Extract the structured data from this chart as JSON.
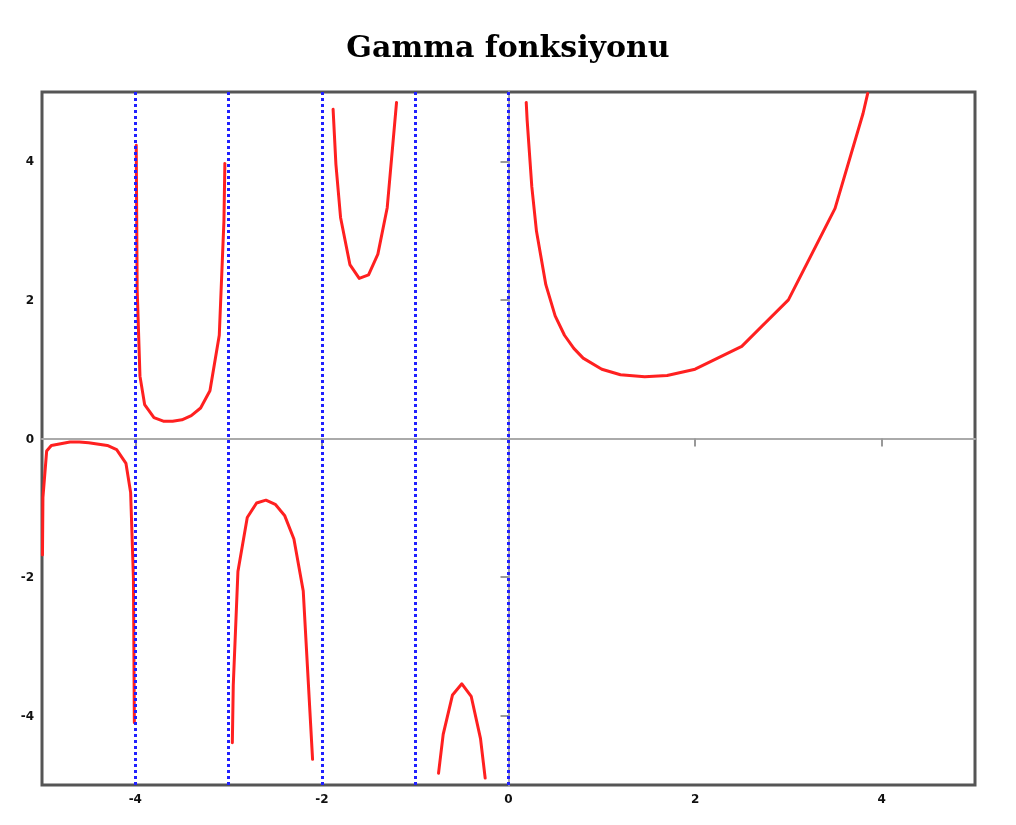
{
  "chart_data": {
    "type": "line",
    "title": "Gamma fonksiyonu",
    "x": [
      -4.995,
      -4.99,
      -4.95,
      -4.9,
      -4.7,
      -4.6,
      -4.5,
      -4.3,
      -4.2,
      -4.1,
      -4.05,
      -4.02,
      -4.01,
      null,
      -3.99,
      -3.98,
      -3.95,
      -3.9,
      -3.8,
      -3.7,
      -3.6,
      -3.5,
      -3.4,
      -3.3,
      -3.2,
      -3.1,
      -3.05,
      -3.04,
      null,
      -2.96,
      -2.95,
      -2.9,
      -2.8,
      -2.7,
      -2.6,
      -2.5,
      -2.4,
      -2.3,
      -2.2,
      -2.1,
      null,
      -1.88,
      -1.85,
      -1.8,
      -1.7,
      -1.6,
      -1.5,
      -1.4,
      -1.3,
      -1.2,
      null,
      -0.75,
      -0.7,
      -0.6,
      -0.5,
      -0.4,
      -0.3,
      -0.25,
      null,
      0.19,
      0.2,
      0.25,
      0.3,
      0.4,
      0.5,
      0.6,
      0.7,
      0.8,
      1,
      1.2,
      1.46,
      1.7,
      2,
      2.5,
      3,
      3.5,
      3.8,
      3.85
    ],
    "series": [
      {
        "color": "#ff2020",
        "values": [
          -1.68,
          -0.85,
          -0.18,
          -0.1,
          -0.05,
          -0.05,
          -0.06,
          -0.1,
          -0.16,
          -0.36,
          -0.78,
          -2.02,
          -4.1,
          null,
          4.23,
          2.15,
          0.9,
          0.49,
          0.3,
          0.25,
          0.25,
          0.27,
          0.33,
          0.44,
          0.69,
          1.49,
          3.14,
          3.97,
          null,
          -4.39,
          -3.56,
          -1.92,
          -1.14,
          -0.93,
          -0.89,
          -0.95,
          -1.11,
          -1.45,
          -2.2,
          -4.63,
          null,
          4.75,
          3.96,
          3.19,
          2.51,
          2.31,
          2.36,
          2.66,
          3.33,
          4.85,
          null,
          -4.83,
          -4.27,
          -3.7,
          -3.54,
          -3.72,
          -4.33,
          -4.9,
          null,
          4.85,
          4.59,
          3.63,
          2.99,
          2.22,
          1.77,
          1.49,
          1.3,
          1.16,
          1,
          0.92,
          0.89,
          0.91,
          1,
          1.33,
          2,
          3.32,
          4.69,
          4.98
        ]
      }
    ],
    "xlim": [
      -5,
      5
    ],
    "ylim": [
      -5,
      5
    ],
    "xticks": [
      -4,
      -2,
      0,
      2,
      4
    ],
    "yticks": [
      -4,
      -2,
      0,
      2,
      4
    ],
    "ref_lines": [
      {
        "axis": "x",
        "value": -4,
        "color": "#2020ff",
        "line_style": "dotted"
      },
      {
        "axis": "x",
        "value": -3,
        "color": "#2020ff",
        "line_style": "dotted"
      },
      {
        "axis": "x",
        "value": -2,
        "color": "#2020ff",
        "line_style": "dotted"
      },
      {
        "axis": "x",
        "value": -1,
        "color": "#2020ff",
        "line_style": "dotted"
      },
      {
        "axis": "x",
        "value": 0,
        "color": "#2020ff",
        "line_style": "dotted"
      }
    ],
    "marker": "none",
    "line_style": "solid"
  }
}
